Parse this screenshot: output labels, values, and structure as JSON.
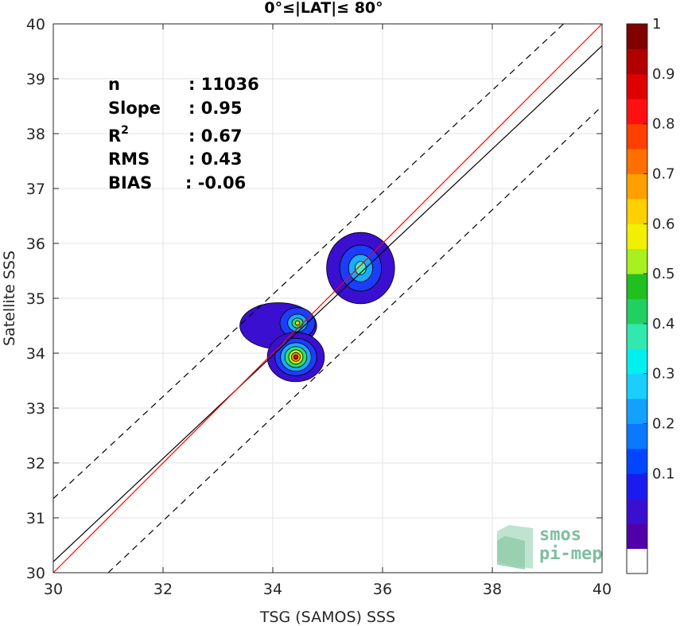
{
  "chart_data": {
    "type": "scatter",
    "title": "0°≤|LAT|≤ 80°",
    "xlabel": "TSG (SAMOS) SSS",
    "ylabel": "Satellite SSS",
    "xlim": [
      30,
      40
    ],
    "ylim": [
      30,
      40
    ],
    "x_ticks": [
      "30",
      "32",
      "34",
      "36",
      "38",
      "40"
    ],
    "y_ticks": [
      "30",
      "31",
      "32",
      "33",
      "34",
      "35",
      "36",
      "37",
      "38",
      "39",
      "40"
    ],
    "grid": true,
    "stats": [
      {
        "key": "n",
        "value": ": 11036"
      },
      {
        "key": "Slope",
        "value": ": 0.95"
      },
      {
        "key": "R",
        "sup": "2",
        "value": ": 0.67"
      },
      {
        "key": "RMS",
        "value": ": 0.43"
      },
      {
        "key": "BIAS",
        "value": ": -0.06"
      }
    ],
    "lines": {
      "identity": {
        "points": [
          [
            30,
            30
          ],
          [
            40,
            40
          ]
        ],
        "color": "#ff0000"
      },
      "regression": {
        "points": [
          [
            30,
            30.2
          ],
          [
            40,
            39.6
          ]
        ],
        "color": "#000000"
      },
      "upper_bound": {
        "points": [
          [
            30,
            31.35
          ],
          [
            39.3,
            40
          ]
        ],
        "style": "dashed"
      },
      "lower_bound": {
        "points": [
          [
            31,
            30
          ],
          [
            40,
            38.5
          ]
        ],
        "style": "dashed"
      }
    },
    "density_clusters": [
      {
        "name": "cluster-high",
        "center": [
          35.6,
          35.55
        ],
        "levels": [
          {
            "rx": 0.62,
            "ry": 0.65,
            "color": "#3a0fd0"
          },
          {
            "rx": 0.38,
            "ry": 0.42,
            "color": "#1b3dff"
          },
          {
            "rx": 0.22,
            "ry": 0.25,
            "color": "#1aaaff"
          },
          {
            "rx": 0.1,
            "ry": 0.12,
            "color": "#48f0c0"
          }
        ]
      },
      {
        "name": "cluster-mid",
        "center": [
          34.1,
          34.5
        ],
        "levels": [
          {
            "rx": 0.7,
            "ry": 0.42,
            "color": "#3a0fd0"
          }
        ]
      },
      {
        "name": "cluster-mid-peak",
        "center": [
          34.45,
          34.55
        ],
        "levels": [
          {
            "rx": 0.32,
            "ry": 0.28,
            "color": "#1b3dff"
          },
          {
            "rx": 0.18,
            "ry": 0.16,
            "color": "#1aaaff"
          },
          {
            "rx": 0.1,
            "ry": 0.09,
            "color": "#30e070"
          },
          {
            "rx": 0.04,
            "ry": 0.04,
            "color": "#f0d000"
          }
        ]
      },
      {
        "name": "cluster-low",
        "center": [
          34.42,
          33.93
        ],
        "levels": [
          {
            "rx": 0.52,
            "ry": 0.45,
            "color": "#3a0fd0"
          },
          {
            "rx": 0.38,
            "ry": 0.34,
            "color": "#1b3dff"
          },
          {
            "rx": 0.28,
            "ry": 0.26,
            "color": "#1aaaff"
          },
          {
            "rx": 0.2,
            "ry": 0.19,
            "color": "#30e070"
          },
          {
            "rx": 0.13,
            "ry": 0.13,
            "color": "#c0f020"
          },
          {
            "rx": 0.08,
            "ry": 0.08,
            "color": "#ffa000"
          },
          {
            "rx": 0.04,
            "ry": 0.04,
            "color": "#d01010"
          }
        ]
      }
    ],
    "colorbar": {
      "colors": [
        "#ffffff",
        "#5000a8",
        "#3a0fd0",
        "#1b1bf0",
        "#0046ff",
        "#0a78ff",
        "#14a0ff",
        "#1aceff",
        "#00f0f0",
        "#30e8b0",
        "#20d060",
        "#20c020",
        "#a8f020",
        "#f0f000",
        "#ffd000",
        "#ffa000",
        "#ff7000",
        "#ff4000",
        "#ff1010",
        "#e00000",
        "#b00000",
        "#800000"
      ],
      "tick_values": [
        0.1,
        0.2,
        0.3,
        0.4,
        0.5,
        0.6,
        0.7,
        0.8,
        0.9,
        1
      ],
      "tick_labels": [
        "0.1",
        "0.2",
        "0.3",
        "0.4",
        "0.5",
        "0.6",
        "0.7",
        "0.8",
        "0.9",
        "1"
      ]
    }
  },
  "logo": {
    "line1": "smos",
    "line2": "pi-mep"
  }
}
